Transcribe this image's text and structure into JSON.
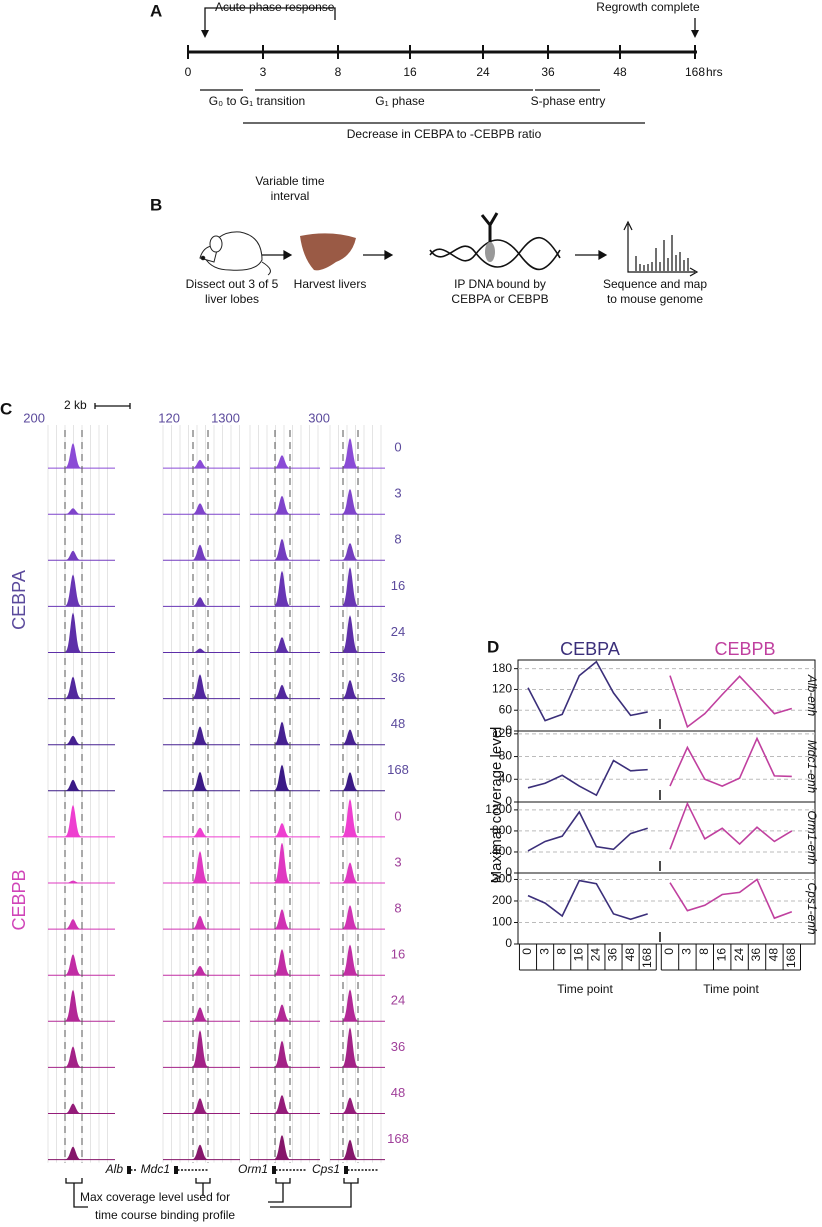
{
  "panel_a": {
    "label": "A",
    "start_label": "Acute phase response",
    "end_label": "Regrowth complete",
    "unit": "hrs",
    "phases": [
      "G₀ to G₁ transition",
      "G₁ phase",
      "S-phase entry"
    ],
    "ratio": "Decrease in CEBPA to -CEBPB ratio"
  },
  "panel_b": {
    "label": "B",
    "steps": [
      "Dissect out 3 of 5",
      "liver lobes",
      "Variable time",
      "interval",
      "Harvest livers",
      "IP DNA bound by",
      "CEBPA or CEBPB",
      "Sequence and map",
      "to mouse genome"
    ]
  },
  "panel_c": {
    "label": "C",
    "scale_bar": "2 kb",
    "scales": [
      200,
      120,
      1300,
      300
    ],
    "genes": [
      "Alb",
      "Mdc1",
      "Orm1",
      "Cps1"
    ],
    "note": [
      "Max coverage level used for",
      "time course binding profile"
    ]
  },
  "panel_d": {
    "label": "D",
    "ylabel": "Maximal coverage level",
    "xlabel": "Time point"
  },
  "chart_data": [
    {
      "type": "line",
      "ylabel": "Alb-enh",
      "categories": [
        "0",
        "3",
        "8",
        "16",
        "24",
        "36",
        "48",
        "168"
      ],
      "series": [
        {
          "name": "CEBPA",
          "color": "#3b2f7a",
          "values": [
            125,
            30,
            48,
            160,
            200,
            110,
            45,
            55
          ]
        },
        {
          "name": "CEBPB",
          "color": "#c0409f",
          "values": [
            160,
            12,
            50,
            105,
            158,
            105,
            50,
            65
          ]
        }
      ],
      "ylim": [
        0,
        205
      ],
      "yticks": [
        0,
        60,
        120,
        180
      ],
      "grid": true
    },
    {
      "type": "line",
      "ylabel": "Mdc1-enh",
      "categories": [
        "0",
        "3",
        "8",
        "16",
        "24",
        "36",
        "48",
        "168"
      ],
      "series": [
        {
          "name": "CEBPA",
          "color": "#3b2f7a",
          "values": [
            25,
            33,
            47,
            28,
            12,
            73,
            55,
            57
          ]
        },
        {
          "name": "CEBPB",
          "color": "#c0409f",
          "values": [
            28,
            96,
            40,
            28,
            42,
            112,
            46,
            45
          ]
        }
      ],
      "ylim": [
        0,
        125
      ],
      "yticks": [
        0,
        40,
        80,
        120
      ],
      "grid": true
    },
    {
      "type": "line",
      "ylabel": "Orm1-enh",
      "categories": [
        "0",
        "3",
        "8",
        "16",
        "24",
        "36",
        "48",
        "168"
      ],
      "series": [
        {
          "name": "CEBPA",
          "color": "#3b2f7a",
          "values": [
            420,
            600,
            700,
            1160,
            500,
            450,
            750,
            850
          ]
        },
        {
          "name": "CEBPB",
          "color": "#c0409f",
          "values": [
            450,
            1320,
            650,
            850,
            550,
            870,
            600,
            800
          ]
        }
      ],
      "ylim": [
        0,
        1350
      ],
      "yticks": [
        0,
        400,
        800,
        1200
      ],
      "grid": true
    },
    {
      "type": "line",
      "ylabel": "Cps1-enh",
      "categories": [
        "0",
        "3",
        "8",
        "16",
        "24",
        "36",
        "48",
        "168"
      ],
      "series": [
        {
          "name": "CEBPA",
          "color": "#3b2f7a",
          "values": [
            225,
            190,
            130,
            295,
            280,
            140,
            115,
            140
          ]
        },
        {
          "name": "CEBPB",
          "color": "#c0409f",
          "values": [
            285,
            155,
            180,
            230,
            240,
            300,
            120,
            150
          ]
        }
      ],
      "ylim": [
        0,
        330
      ],
      "yticks": [
        0,
        100,
        200,
        300
      ],
      "grid": true
    }
  ]
}
